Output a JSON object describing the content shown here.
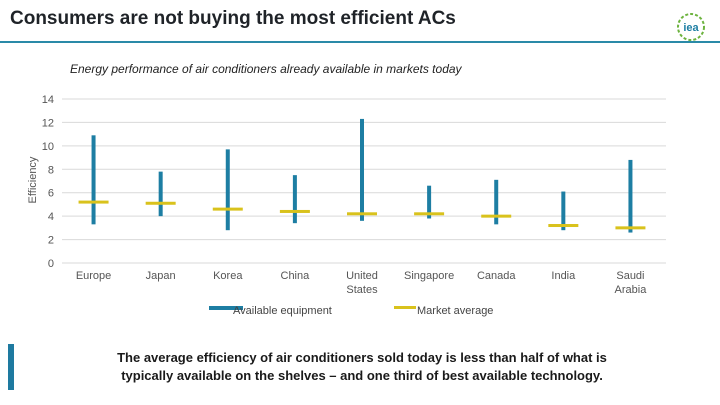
{
  "header": {
    "title": "Consumers are not buying the most efficient ACs",
    "logo_text": "iea"
  },
  "colors": {
    "accent": "#2a8aa8",
    "bar": "#1d7ea3",
    "marker": "#d9c21c",
    "grid": "#d9d9d9"
  },
  "chart_data": {
    "type": "range_bar_with_marker",
    "title": "Energy performance of air conditioners already available in markets today",
    "ylabel": "Efficiency",
    "xlabel": "",
    "ylim": [
      0,
      14
    ],
    "yticks": [
      0,
      2,
      4,
      6,
      8,
      10,
      12,
      14
    ],
    "categories": [
      "Europe",
      "Japan",
      "Korea",
      "China",
      "United States",
      "Singapore",
      "Canada",
      "India",
      "Saudi Arabia"
    ],
    "category_labels": [
      [
        "Europe"
      ],
      [
        "Japan"
      ],
      [
        "Korea"
      ],
      [
        "China"
      ],
      [
        "United",
        "States"
      ],
      [
        "Singapore"
      ],
      [
        "Canada"
      ],
      [
        "India"
      ],
      [
        "Saudi",
        "Arabia"
      ]
    ],
    "series": [
      {
        "name": "Available equipment",
        "kind": "range",
        "min": [
          3.3,
          4.0,
          2.8,
          3.4,
          3.6,
          3.8,
          3.3,
          2.8,
          2.6
        ],
        "max": [
          10.9,
          7.8,
          9.7,
          7.5,
          12.3,
          6.6,
          7.1,
          6.1,
          8.8
        ]
      },
      {
        "name": "Market average",
        "kind": "marker",
        "values": [
          5.2,
          5.1,
          4.6,
          4.4,
          4.2,
          4.2,
          4.0,
          3.2,
          3.0
        ]
      }
    ],
    "grid": true,
    "legend": "bottom"
  },
  "footnote": {
    "line1": "The average efficiency of air conditioners sold today is less than half of what is",
    "line2": "typically available on the shelves – and one third of best available technology."
  }
}
